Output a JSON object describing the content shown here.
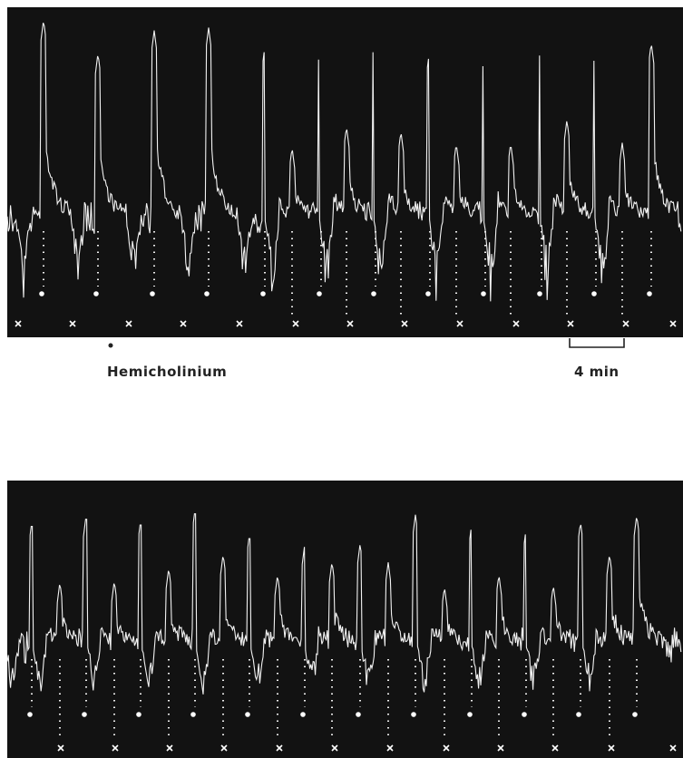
{
  "labels": {
    "drug": "Hemicholinium",
    "scale_bar": "4 min"
  }
}
